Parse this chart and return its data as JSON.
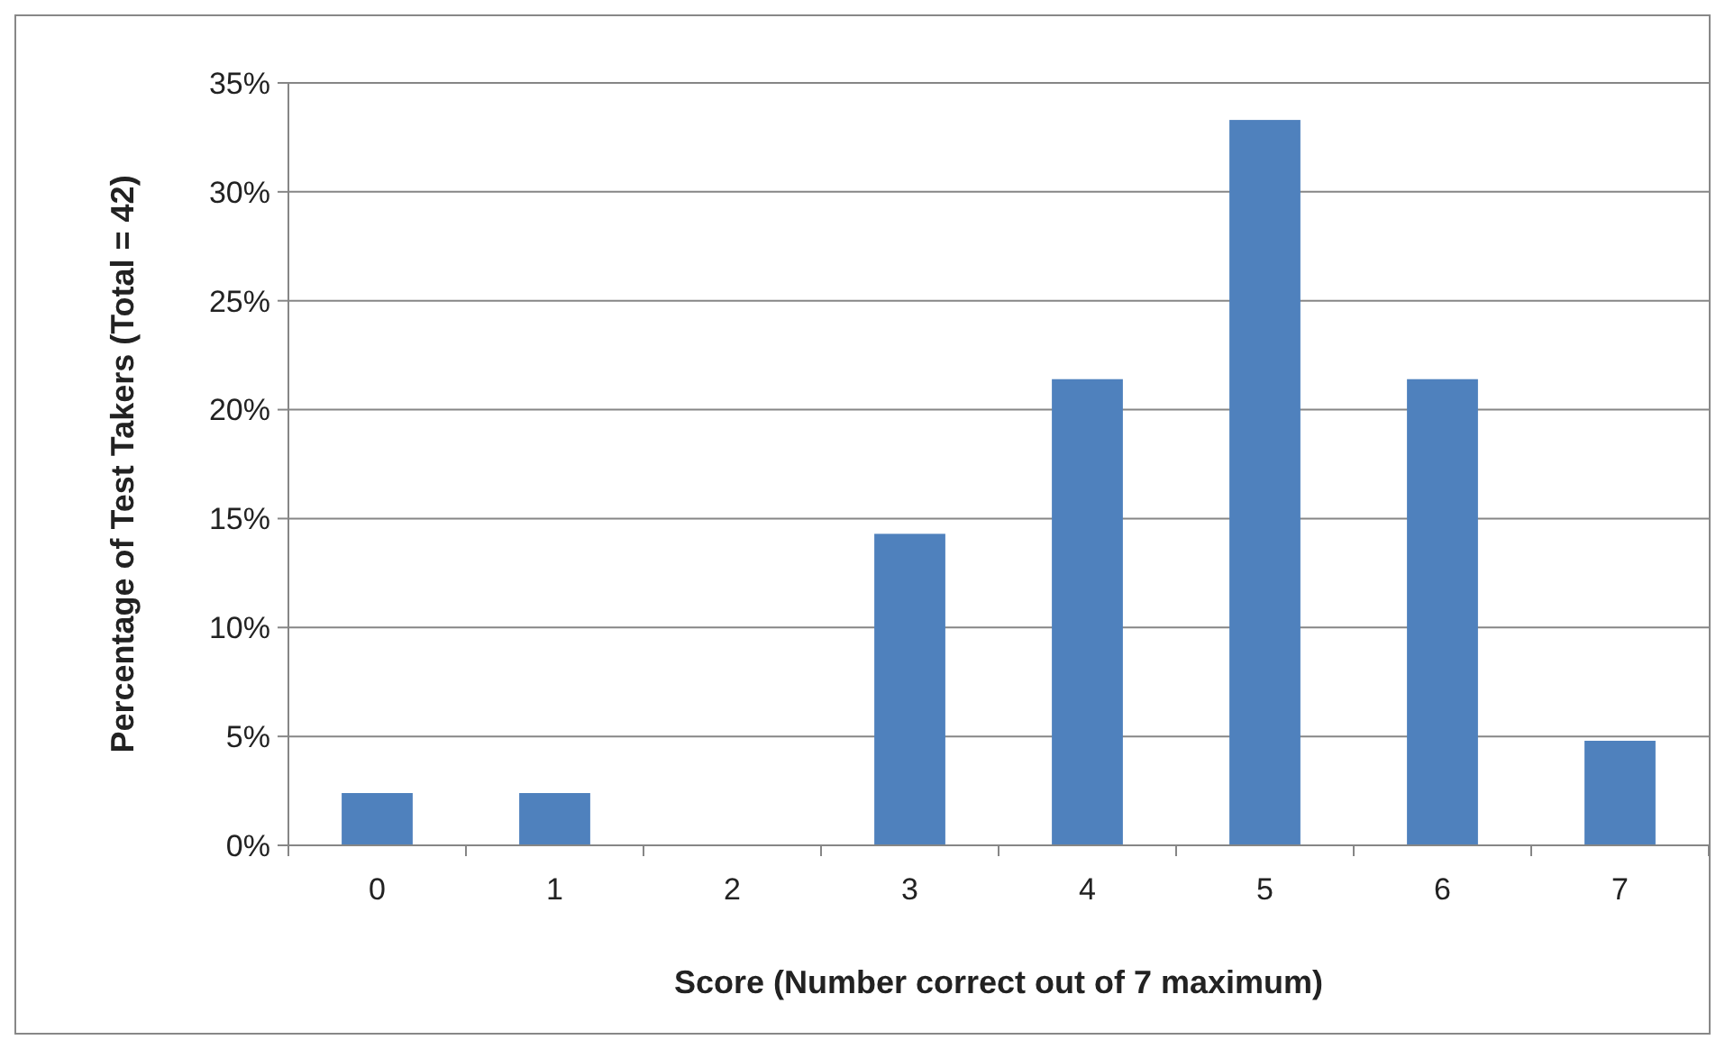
{
  "chart_data": {
    "type": "bar",
    "xlabel": "Score (Number correct out of 7 maximum)",
    "ylabel": "Percentage of Test Takers (Total = 42)",
    "categories": [
      "0",
      "1",
      "2",
      "3",
      "4",
      "5",
      "6",
      "7"
    ],
    "values": [
      2.4,
      2.4,
      0,
      14.3,
      21.4,
      33.3,
      21.4,
      4.8
    ],
    "color": "#4f81bd",
    "ylim": [
      0,
      35
    ],
    "yticks": [
      {
        "value": 0,
        "label": "0%"
      },
      {
        "value": 5,
        "label": "5%"
      },
      {
        "value": 10,
        "label": "10%"
      },
      {
        "value": 15,
        "label": "15%"
      },
      {
        "value": 20,
        "label": "20%"
      },
      {
        "value": 25,
        "label": "25%"
      },
      {
        "value": 30,
        "label": "30%"
      },
      {
        "value": 35,
        "label": "35%"
      }
    ],
    "grid": "y"
  }
}
